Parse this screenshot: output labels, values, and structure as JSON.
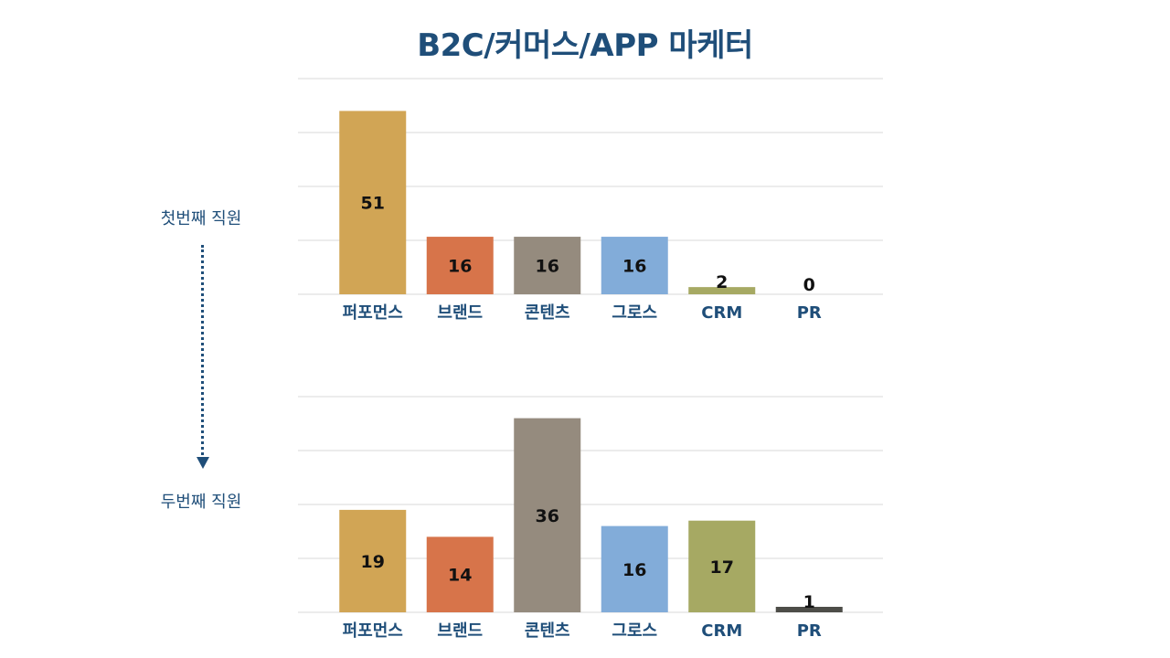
{
  "title": "B2C/커머스/APP 마케터",
  "labels": {
    "first": "첫번째 직원",
    "second": "두번째 직원"
  },
  "colors": {
    "title": "#1f4e79",
    "grid": "#d9d9d9",
    "axis_text": "#1f4e79",
    "value_text": "#111111"
  },
  "chart_data": [
    {
      "type": "bar",
      "categories": [
        "퍼포먼스",
        "브랜드",
        "콘텐츠",
        "그로스",
        "CRM",
        "PR"
      ],
      "values": [
        51,
        16,
        16,
        16,
        2,
        0
      ],
      "colors": [
        "#d1a555",
        "#d7744a",
        "#958b7e",
        "#82acd9",
        "#a6a963",
        "#4d4d48"
      ],
      "ylim": [
        0,
        60
      ],
      "grid": true,
      "title": "",
      "xlabel": "",
      "ylabel": ""
    },
    {
      "type": "bar",
      "categories": [
        "퍼포먼스",
        "브랜드",
        "콘텐츠",
        "그로스",
        "CRM",
        "PR"
      ],
      "values": [
        19,
        14,
        36,
        16,
        17,
        1
      ],
      "colors": [
        "#d1a555",
        "#d7744a",
        "#958b7e",
        "#82acd9",
        "#a6a963",
        "#4d4d48"
      ],
      "ylim": [
        0,
        40
      ],
      "grid": true,
      "title": "",
      "xlabel": "",
      "ylabel": ""
    }
  ]
}
